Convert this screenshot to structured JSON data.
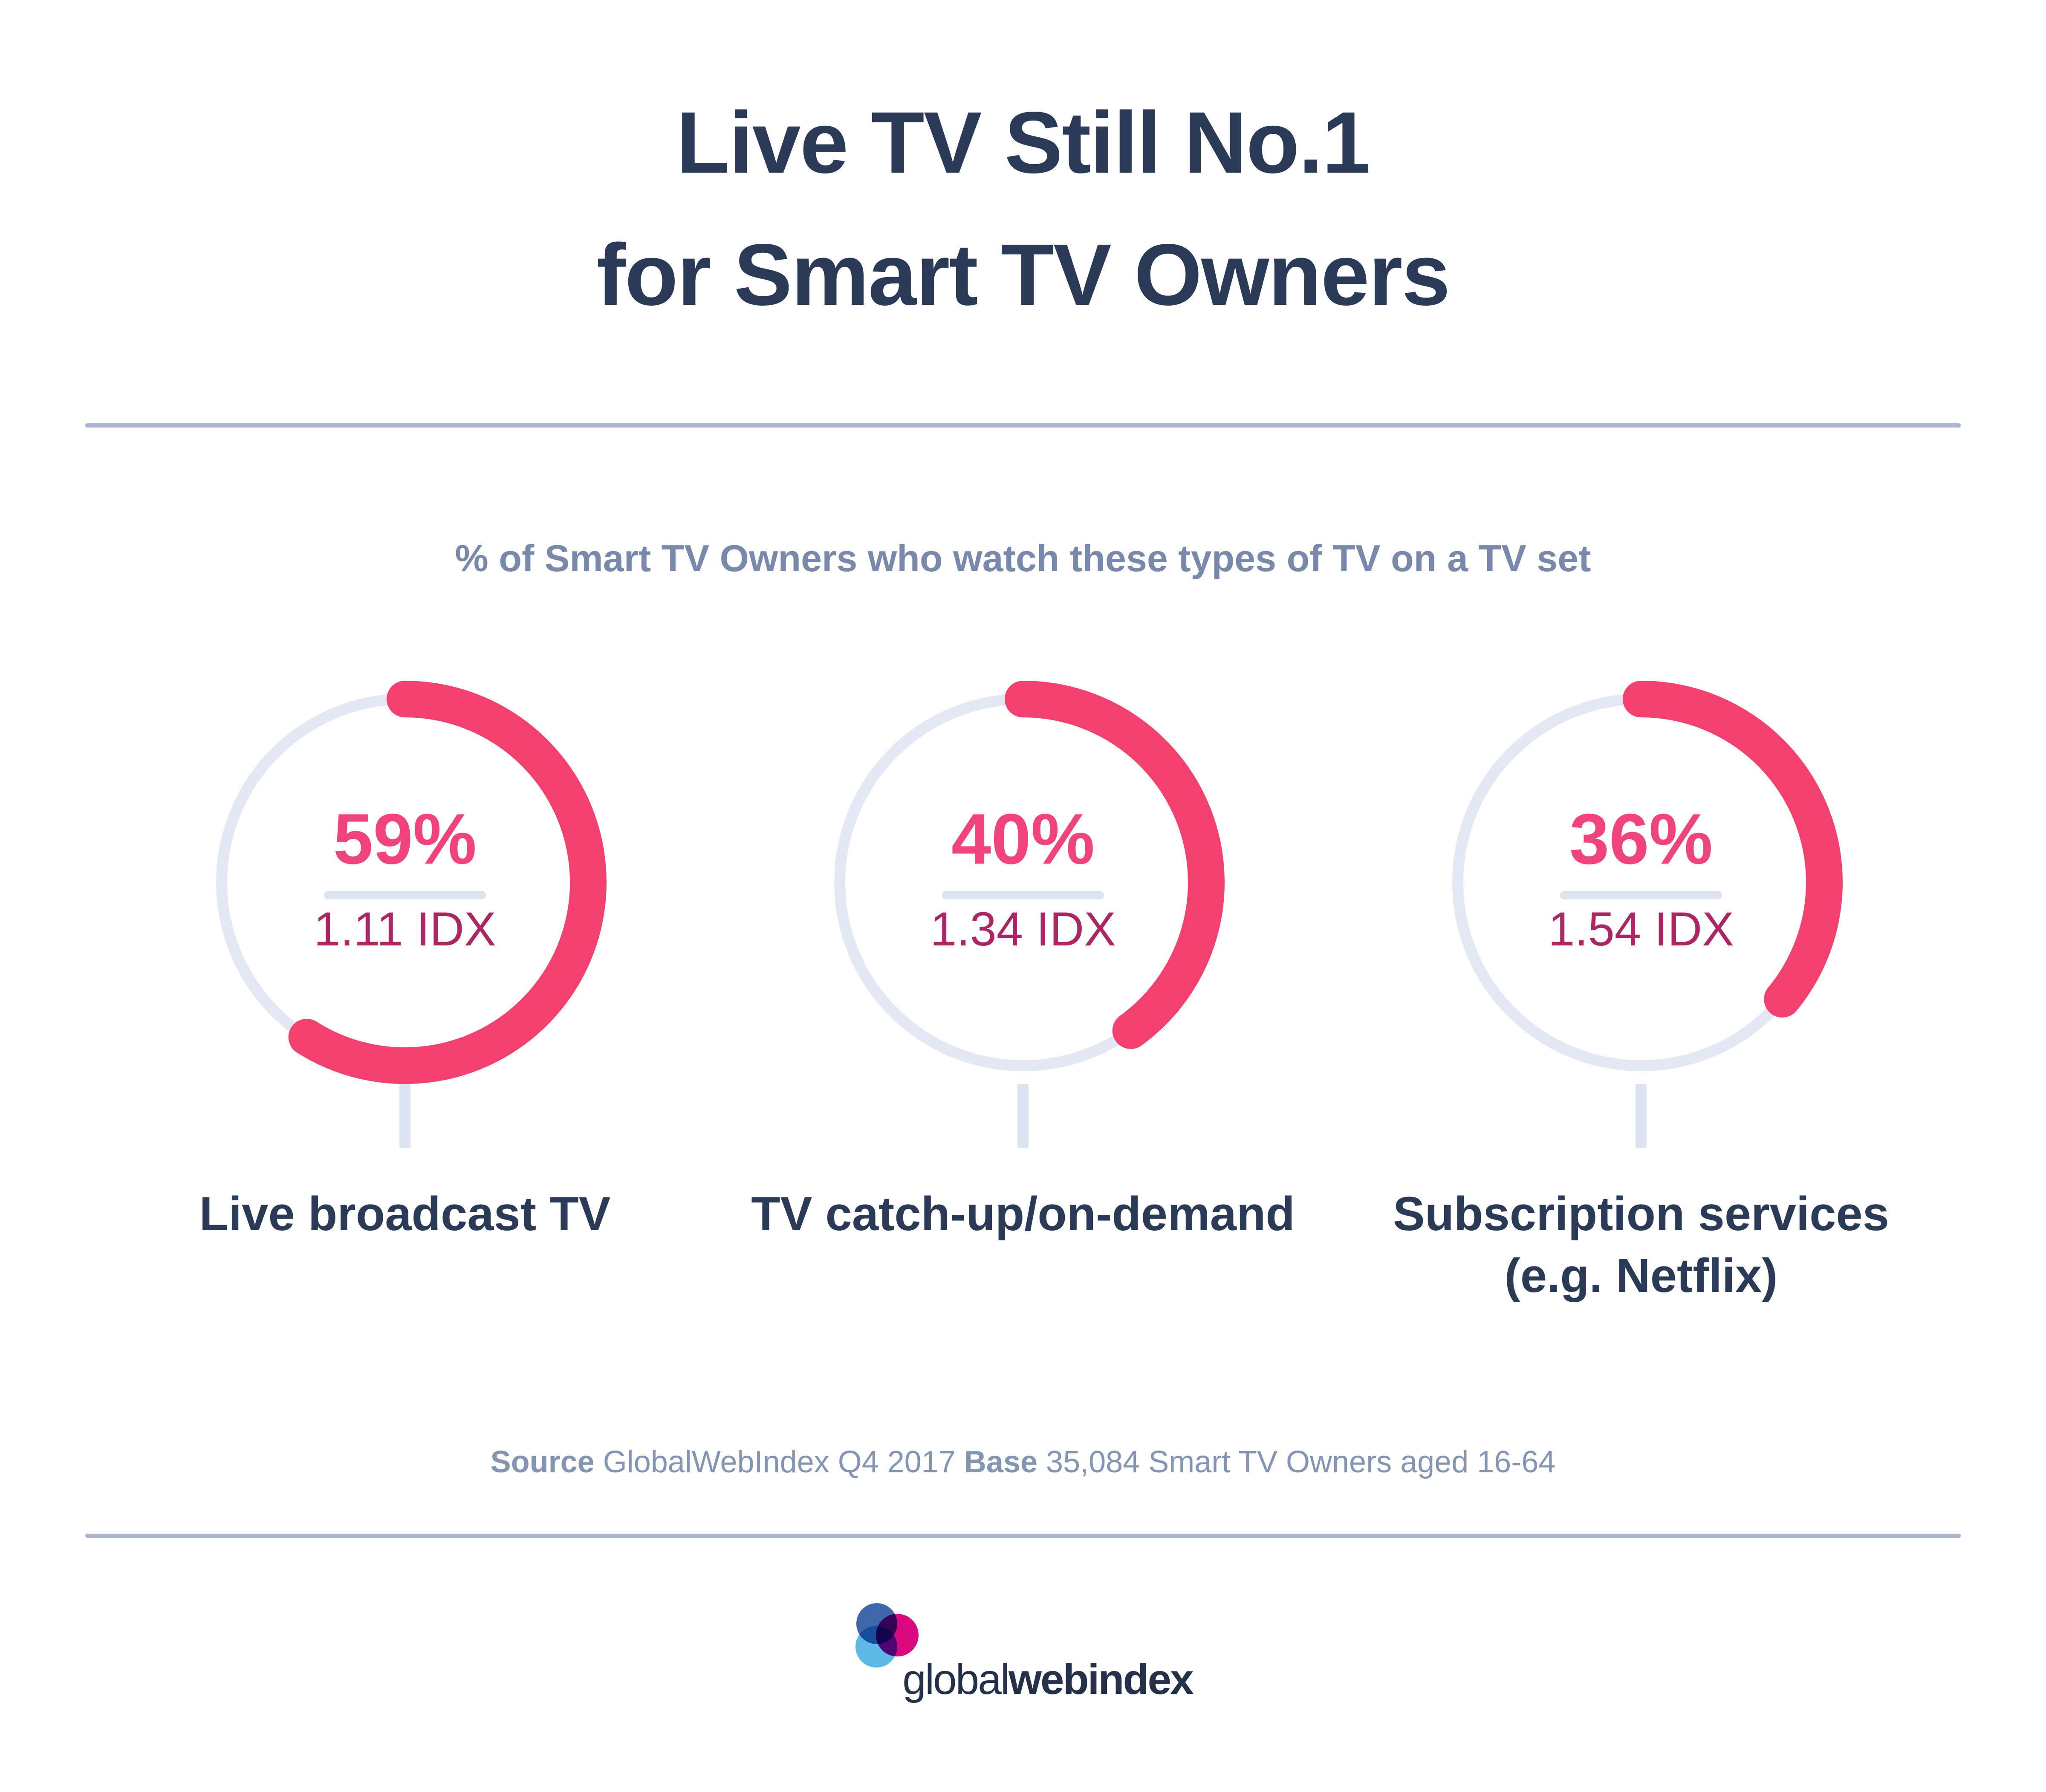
{
  "title": {
    "line1": "Live TV Still No.1",
    "line2": "for Smart TV Owners"
  },
  "subtitle": "% of Smart TV Owners who watch these types of TV on a TV set",
  "gauges": [
    {
      "percent": 59,
      "percent_label": "59%",
      "idx_label": "1.11 IDX",
      "category_line1": "Live broadcast TV",
      "category_line2": ""
    },
    {
      "percent": 40,
      "percent_label": "40%",
      "idx_label": "1.34 IDX",
      "category_line1": "TV catch-up/on-demand",
      "category_line2": ""
    },
    {
      "percent": 36,
      "percent_label": "36%",
      "idx_label": "1.54 IDX",
      "category_line1": "Subscription services",
      "category_line2": "(e.g. Netflix)"
    }
  ],
  "source": {
    "label1": "Source",
    "text1": " GlobalWebIndex Q4 2017 ",
    "label2": "Base",
    "text2": " 35,084 Smart TV Owners aged 16-64"
  },
  "logo": {
    "part1": "global",
    "part2": "web",
    "part3": "index"
  },
  "colors": {
    "navy": "#2B3A57",
    "subtitle": "#7889AB",
    "source": "#8495B3",
    "rule": "#A9B4CE",
    "ring": "#E3E8F4",
    "lightbar": "#DCE3F1",
    "arc": "#F4406F",
    "pct": "#F0437B",
    "idx": "#AB2663",
    "wordmark": "#25304A",
    "logo_blue": "#3E68AB",
    "logo_magenta": "#D9087E",
    "logo_cyan": "#5CB8E7"
  },
  "chart_data": {
    "type": "pie",
    "subtype": "donut-gauge-trio",
    "title": "Live TV Still No.1 for Smart TV Owners",
    "subtitle": "% of Smart TV Owners who watch these types of TV on a TV set",
    "categories": [
      "Live broadcast TV",
      "TV catch-up/on-demand",
      "Subscription services (e.g. Netflix)"
    ],
    "values": [
      59,
      40,
      36
    ],
    "idx_values": [
      1.11,
      1.34,
      1.54
    ],
    "unit": "%",
    "gauge_start_angle_deg": 0,
    "gauge_direction": "clockwise",
    "source_note": "Source GlobalWebIndex Q4 2017 Base 35,084 Smart TV Owners aged 16-64"
  }
}
